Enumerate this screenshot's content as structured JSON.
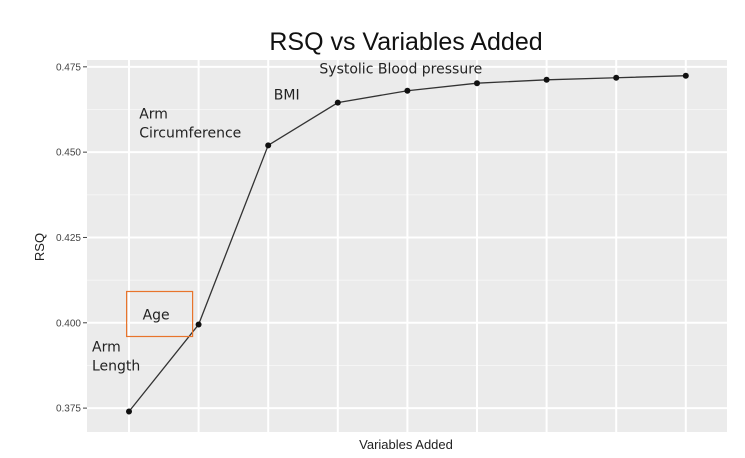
{
  "chart_data": {
    "type": "line",
    "title": "RSQ vs Variables Added",
    "xlabel": "Variables Added",
    "ylabel": "RSQ",
    "x": [
      1,
      2,
      3,
      4,
      5,
      6,
      7,
      8,
      9
    ],
    "values": [
      0.374,
      0.3995,
      0.452,
      0.4645,
      0.468,
      0.4702,
      0.4712,
      0.4718,
      0.4724
    ],
    "ylim": [
      0.368,
      0.477
    ],
    "yticks": [
      "0.375",
      "0.400",
      "0.425",
      "0.450",
      "0.475"
    ],
    "grid": true,
    "background": "#ebebeb",
    "line_color": "#333333",
    "annotations": [
      {
        "lines": [
          "Arm",
          "Length"
        ],
        "point": 1,
        "boxed": false
      },
      {
        "lines": [
          "Age"
        ],
        "point": 2,
        "boxed": true,
        "box_color": "#e8742c"
      },
      {
        "lines": [
          "Arm",
          "Circumference"
        ],
        "point": 3,
        "boxed": false
      },
      {
        "lines": [
          "BMI"
        ],
        "point": 4,
        "boxed": false
      },
      {
        "lines": [
          "Systolic Blood pressure"
        ],
        "point": 5,
        "boxed": false
      }
    ]
  }
}
